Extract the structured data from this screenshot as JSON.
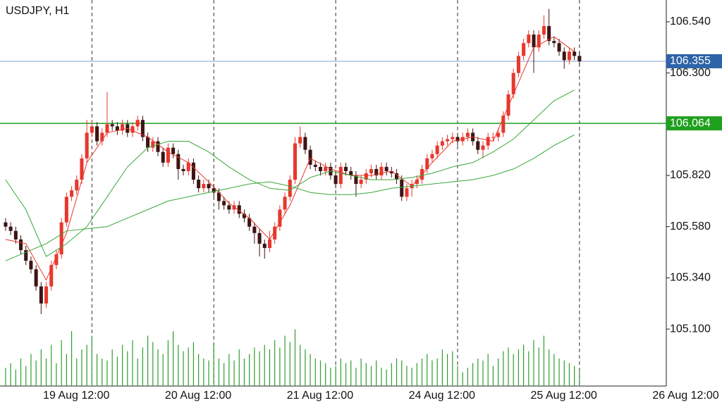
{
  "chart_data": {
    "type": "candlestick",
    "title": "USDJPY, H1",
    "candle_colors": {
      "up": "#e8372d",
      "down": "#3d1414"
    },
    "grid": true,
    "xlim": [
      -1.1,
      130.1
    ],
    "xticks": [
      {
        "value": 17,
        "label": "19 Aug 12:00"
      },
      {
        "value": 41,
        "label": "20 Aug 12:00"
      },
      {
        "value": 65,
        "label": "21 Aug 12:00"
      },
      {
        "value": 89,
        "label": "24 Aug 12:00"
      },
      {
        "value": 113,
        "label": "25 Aug 12:00"
      },
      {
        "value": 137,
        "label": "26 Aug 12:00"
      }
    ],
    "ylim": [
      104.833,
      106.642
    ],
    "yticks": [
      {
        "value": 105.1,
        "label": "105.100"
      },
      {
        "value": 105.34,
        "label": "105.340"
      },
      {
        "value": 105.58,
        "label": "105.580"
      },
      {
        "value": 105.82,
        "label": "105.820"
      },
      {
        "value": 106.3,
        "label": "106.300"
      },
      {
        "value": 106.54,
        "label": "106.540"
      }
    ],
    "price_lines": [
      {
        "value": 106.355,
        "color": "#2d64a8"
      },
      {
        "value": 106.064,
        "color": "#1fa01f"
      }
    ],
    "candles": [
      [
        105.6,
        105.62,
        105.56,
        105.58
      ],
      [
        105.58,
        105.6,
        105.54,
        105.56
      ],
      [
        105.56,
        105.58,
        105.5,
        105.52
      ],
      [
        105.52,
        105.54,
        105.45,
        105.47
      ],
      [
        105.47,
        105.49,
        105.4,
        105.42
      ],
      [
        105.42,
        105.44,
        105.36,
        105.38
      ],
      [
        105.38,
        105.4,
        105.28,
        105.3
      ],
      [
        105.3,
        105.32,
        105.17,
        105.22
      ],
      [
        105.22,
        105.32,
        105.2,
        105.3
      ],
      [
        105.3,
        105.42,
        105.28,
        105.4
      ],
      [
        105.4,
        105.47,
        105.38,
        105.45
      ],
      [
        105.45,
        105.62,
        105.43,
        105.6
      ],
      [
        105.6,
        105.74,
        105.58,
        105.72
      ],
      [
        105.72,
        105.77,
        105.7,
        105.75
      ],
      [
        105.75,
        105.82,
        105.73,
        105.8
      ],
      [
        105.8,
        105.92,
        105.78,
        105.9
      ],
      [
        105.9,
        106.08,
        105.88,
        106.02
      ],
      [
        106.02,
        106.08,
        106.0,
        106.05
      ],
      [
        106.05,
        106.07,
        105.96,
        105.98
      ],
      [
        105.98,
        106.04,
        105.96,
        106.02
      ],
      [
        106.02,
        106.21,
        106.0,
        106.06
      ],
      [
        106.06,
        106.08,
        106.03,
        106.05
      ],
      [
        106.05,
        106.07,
        106.01,
        106.03
      ],
      [
        106.03,
        106.08,
        106.01,
        106.06
      ],
      [
        106.06,
        106.08,
        106.0,
        106.02
      ],
      [
        106.02,
        106.07,
        106.0,
        106.05
      ],
      [
        106.05,
        106.1,
        106.03,
        106.08
      ],
      [
        106.08,
        106.1,
        105.98,
        106.0
      ],
      [
        106.0,
        106.02,
        105.93,
        105.95
      ],
      [
        105.95,
        106.0,
        105.93,
        105.98
      ],
      [
        105.98,
        106.0,
        105.91,
        105.93
      ],
      [
        105.93,
        105.95,
        105.86,
        105.88
      ],
      [
        105.88,
        105.97,
        105.86,
        105.95
      ],
      [
        105.95,
        105.97,
        105.9,
        105.92
      ],
      [
        105.92,
        105.94,
        105.8,
        105.85
      ],
      [
        105.85,
        105.87,
        105.82,
        105.84
      ],
      [
        105.84,
        105.9,
        105.82,
        105.88
      ],
      [
        105.88,
        105.9,
        105.78,
        105.8
      ],
      [
        105.8,
        105.82,
        105.74,
        105.76
      ],
      [
        105.76,
        105.8,
        105.74,
        105.78
      ],
      [
        105.78,
        105.8,
        105.74,
        105.76
      ],
      [
        105.76,
        105.78,
        105.72,
        105.74
      ],
      [
        105.74,
        105.76,
        105.66,
        105.7
      ],
      [
        105.7,
        105.72,
        105.66,
        105.68
      ],
      [
        105.68,
        105.7,
        105.64,
        105.66
      ],
      [
        105.66,
        105.7,
        105.64,
        105.68
      ],
      [
        105.68,
        105.7,
        105.62,
        105.64
      ],
      [
        105.64,
        105.66,
        105.6,
        105.62
      ],
      [
        105.62,
        105.64,
        105.56,
        105.58
      ],
      [
        105.58,
        105.6,
        105.5,
        105.55
      ],
      [
        105.55,
        105.57,
        105.44,
        105.5
      ],
      [
        105.5,
        105.52,
        105.43,
        105.48
      ],
      [
        105.48,
        105.56,
        105.46,
        105.52
      ],
      [
        105.52,
        105.6,
        105.5,
        105.58
      ],
      [
        105.58,
        105.68,
        105.56,
        105.66
      ],
      [
        105.66,
        105.74,
        105.64,
        105.72
      ],
      [
        105.72,
        105.82,
        105.7,
        105.8
      ],
      [
        105.8,
        106.0,
        105.78,
        105.97
      ],
      [
        105.97,
        106.05,
        105.95,
        106.0
      ],
      [
        106.0,
        106.02,
        105.92,
        105.94
      ],
      [
        105.94,
        105.96,
        105.85,
        105.87
      ],
      [
        105.87,
        105.89,
        105.84,
        105.86
      ],
      [
        105.86,
        105.88,
        105.82,
        105.84
      ],
      [
        105.84,
        105.88,
        105.82,
        105.86
      ],
      [
        105.86,
        105.88,
        105.8,
        105.82
      ],
      [
        105.82,
        105.84,
        105.76,
        105.78
      ],
      [
        105.78,
        105.88,
        105.76,
        105.86
      ],
      [
        105.86,
        105.88,
        105.82,
        105.84
      ],
      [
        105.84,
        105.86,
        105.8,
        105.82
      ],
      [
        105.82,
        105.84,
        105.72,
        105.78
      ],
      [
        105.78,
        105.82,
        105.76,
        105.8
      ],
      [
        105.8,
        105.85,
        105.78,
        105.83
      ],
      [
        105.83,
        105.87,
        105.81,
        105.85
      ],
      [
        105.85,
        105.87,
        105.8,
        105.82
      ],
      [
        105.82,
        105.88,
        105.8,
        105.86
      ],
      [
        105.86,
        105.88,
        105.82,
        105.84
      ],
      [
        105.84,
        105.86,
        105.81,
        105.83
      ],
      [
        105.83,
        105.85,
        105.78,
        105.8
      ],
      [
        105.8,
        105.82,
        105.7,
        105.72
      ],
      [
        105.72,
        105.78,
        105.7,
        105.76
      ],
      [
        105.76,
        105.8,
        105.72,
        105.78
      ],
      [
        105.78,
        105.82,
        105.76,
        105.8
      ],
      [
        105.8,
        105.87,
        105.78,
        105.85
      ],
      [
        105.85,
        105.92,
        105.83,
        105.9
      ],
      [
        105.9,
        105.94,
        105.88,
        105.92
      ],
      [
        105.92,
        105.98,
        105.9,
        105.96
      ],
      [
        105.96,
        106.0,
        105.94,
        105.98
      ],
      [
        105.98,
        106.01,
        105.96,
        105.99
      ],
      [
        105.99,
        106.02,
        105.97,
        106.0
      ],
      [
        106.0,
        106.02,
        105.96,
        105.98
      ],
      [
        105.98,
        106.02,
        105.96,
        106.0
      ],
      [
        106.0,
        106.04,
        105.98,
        106.02
      ],
      [
        106.02,
        106.04,
        105.96,
        105.98
      ],
      [
        105.98,
        106.0,
        105.92,
        105.94
      ],
      [
        105.94,
        105.98,
        105.9,
        105.96
      ],
      [
        105.96,
        106.02,
        105.94,
        106.0
      ],
      [
        106.0,
        106.02,
        105.98,
        106.0
      ],
      [
        106.0,
        106.04,
        105.98,
        106.02
      ],
      [
        106.02,
        106.12,
        106.0,
        106.1
      ],
      [
        106.1,
        106.22,
        106.08,
        106.2
      ],
      [
        106.2,
        106.32,
        106.18,
        106.3
      ],
      [
        106.3,
        106.4,
        106.28,
        106.38
      ],
      [
        106.38,
        106.46,
        106.36,
        106.44
      ],
      [
        106.44,
        106.5,
        106.42,
        106.48
      ],
      [
        106.48,
        106.5,
        106.3,
        106.42
      ],
      [
        106.42,
        106.5,
        106.4,
        106.48
      ],
      [
        106.48,
        106.57,
        106.46,
        106.52
      ],
      [
        106.52,
        106.6,
        106.43,
        106.45
      ],
      [
        106.45,
        106.47,
        106.42,
        106.44
      ],
      [
        106.44,
        106.46,
        106.38,
        106.4
      ],
      [
        106.4,
        106.42,
        106.32,
        106.36
      ],
      [
        106.36,
        106.42,
        106.34,
        106.4
      ],
      [
        106.4,
        106.42,
        106.36,
        106.38
      ],
      [
        106.38,
        106.4,
        106.34,
        106.355
      ]
    ],
    "volume_color": "#2e9e2e",
    "volume": [
      20,
      25,
      18,
      30,
      22,
      35,
      28,
      40,
      30,
      45,
      25,
      50,
      35,
      60,
      30,
      40,
      45,
      55,
      35,
      30,
      28,
      40,
      32,
      45,
      38,
      50,
      30,
      42,
      55,
      48,
      40,
      35,
      50,
      60,
      45,
      38,
      42,
      48,
      35,
      30,
      28,
      45,
      30,
      25,
      35,
      28,
      40,
      30,
      35,
      42,
      38,
      45,
      40,
      50,
      42,
      55,
      48,
      62,
      45,
      40,
      35,
      30,
      28,
      25,
      20,
      22,
      30,
      25,
      28,
      20,
      30,
      25,
      22,
      28,
      20,
      18,
      25,
      30,
      28,
      22,
      20,
      25,
      30,
      35,
      28,
      30,
      40,
      35,
      38,
      22,
      15,
      20,
      25,
      30,
      28,
      35,
      22,
      30,
      38,
      42,
      35,
      40,
      45,
      38,
      50,
      42,
      55,
      40,
      35,
      30,
      28,
      25,
      22,
      18
    ],
    "ma_x": [
      0,
      4,
      8,
      12,
      16,
      20,
      24,
      28,
      32,
      36,
      40,
      44,
      48,
      52,
      56,
      60,
      64,
      68,
      72,
      76,
      80,
      84,
      88,
      92,
      96,
      100,
      104,
      108,
      112
    ],
    "lines": [
      {
        "color": "#e8372d",
        "values": [
          105.52,
          105.5,
          105.33,
          105.55,
          105.88,
          106.02,
          106.04,
          106.0,
          105.93,
          105.88,
          105.79,
          105.69,
          105.62,
          105.52,
          105.68,
          105.9,
          105.85,
          105.82,
          105.82,
          105.84,
          105.77,
          105.88,
          105.98,
          106.0,
          105.98,
          106.2,
          106.42,
          106.47,
          106.4
        ]
      },
      {
        "color": "#3aa83a",
        "values": [
          105.8,
          105.66,
          105.44,
          105.5,
          105.58,
          105.72,
          105.86,
          105.95,
          105.98,
          105.98,
          105.93,
          105.86,
          105.8,
          105.76,
          105.75,
          105.81,
          105.84,
          105.82,
          105.8,
          105.8,
          105.81,
          105.83,
          105.86,
          105.88,
          105.93,
          105.99,
          106.08,
          106.17,
          106.22
        ]
      },
      {
        "color": "#3aa83a",
        "values": [
          105.42,
          105.46,
          105.5,
          105.56,
          105.57,
          105.58,
          105.62,
          105.66,
          105.7,
          105.72,
          105.74,
          105.76,
          105.78,
          105.79,
          105.77,
          105.74,
          105.73,
          105.73,
          105.74,
          105.76,
          105.77,
          105.78,
          105.79,
          105.8,
          105.82,
          105.85,
          105.9,
          105.96,
          106.01
        ]
      }
    ]
  }
}
